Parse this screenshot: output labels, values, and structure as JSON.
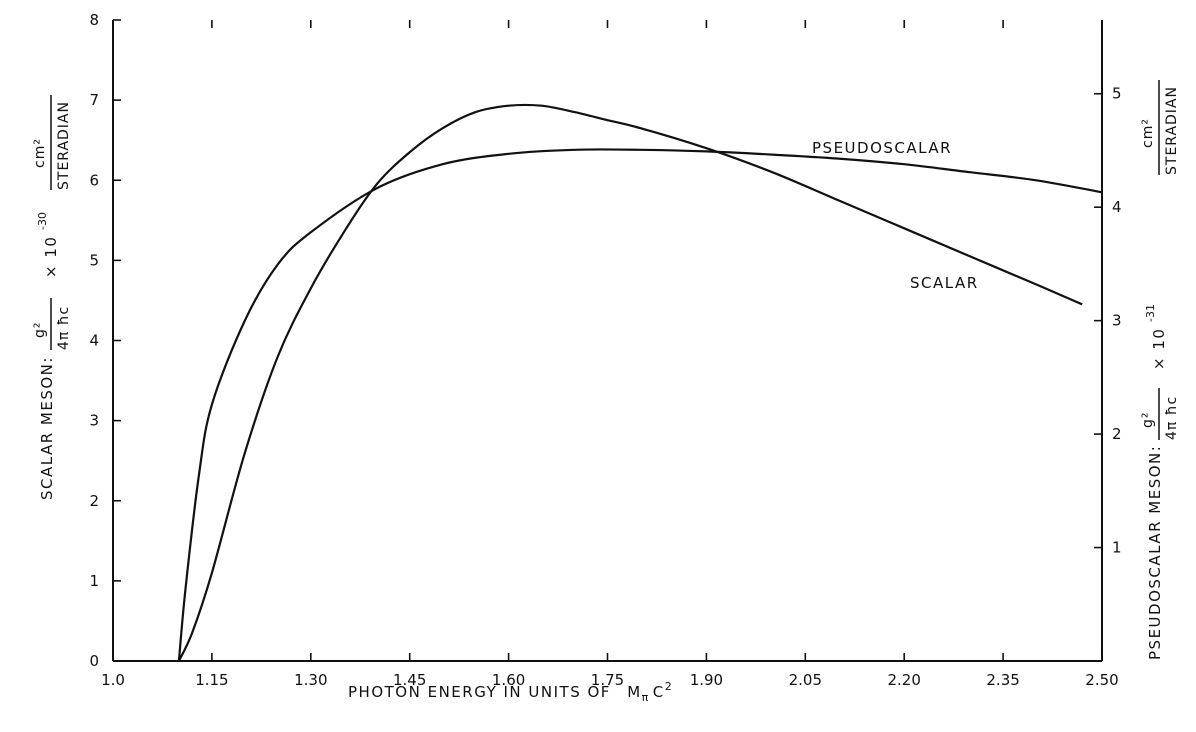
{
  "chart_data": {
    "type": "line",
    "xlabel": "PHOTON ENERGY IN UNITS OF",
    "xlabel_symbol": "M",
    "xlabel_sub": "π",
    "xlabel_c": "C",
    "xlabel_exp": "2",
    "xlim": [
      1.0,
      2.5
    ],
    "x_ticks": [
      "1.0",
      "1.15",
      "1.30",
      "1.45",
      "1.60",
      "1.75",
      "1.90",
      "2.05",
      "2.20",
      "2.35",
      "2.50"
    ],
    "y_left": {
      "ylim": [
        0,
        8
      ],
      "ticks": [
        "0",
        "1",
        "2",
        "3",
        "4",
        "5",
        "6",
        "7",
        "8"
      ],
      "label_prefix": "SCALAR MESON:",
      "frac_num": "g²",
      "frac_den": "4π ħc",
      "factor": "× 10",
      "exponent": "-30",
      "unit_num": "cm²",
      "unit_den": "STERADIAN"
    },
    "y_right": {
      "ylim": [
        0,
        5.65
      ],
      "ticks": [
        "1",
        "2",
        "3",
        "4",
        "5"
      ],
      "label_prefix": "PSEUDOSCALAR MESON:",
      "frac_num": "g²",
      "frac_den": "4π ħc",
      "factor": "× 10",
      "exponent": "-31",
      "unit_num": "cm²",
      "unit_den": "STERADIAN"
    },
    "series": [
      {
        "name": "SCALAR",
        "axis": "left",
        "x": [
          1.1,
          1.12,
          1.15,
          1.2,
          1.25,
          1.3,
          1.35,
          1.4,
          1.45,
          1.5,
          1.55,
          1.6,
          1.65,
          1.7,
          1.75,
          1.8,
          1.9,
          2.0,
          2.1,
          2.2,
          2.3,
          2.4,
          2.47
        ],
        "y": [
          0.0,
          0.35,
          1.1,
          2.6,
          3.8,
          4.65,
          5.35,
          5.95,
          6.35,
          6.65,
          6.85,
          6.93,
          6.93,
          6.85,
          6.75,
          6.65,
          6.4,
          6.1,
          5.75,
          5.4,
          5.05,
          4.7,
          4.45
        ]
      },
      {
        "name": "PSEUDOSCALAR",
        "axis": "left",
        "x": [
          1.1,
          1.11,
          1.13,
          1.15,
          1.2,
          1.25,
          1.3,
          1.4,
          1.5,
          1.6,
          1.7,
          1.8,
          1.9,
          2.0,
          2.1,
          2.2,
          2.3,
          2.4,
          2.5
        ],
        "y": [
          0.0,
          0.9,
          2.3,
          3.2,
          4.25,
          4.95,
          5.35,
          5.9,
          6.2,
          6.33,
          6.38,
          6.38,
          6.36,
          6.32,
          6.27,
          6.2,
          6.1,
          6.0,
          5.85
        ]
      }
    ]
  }
}
